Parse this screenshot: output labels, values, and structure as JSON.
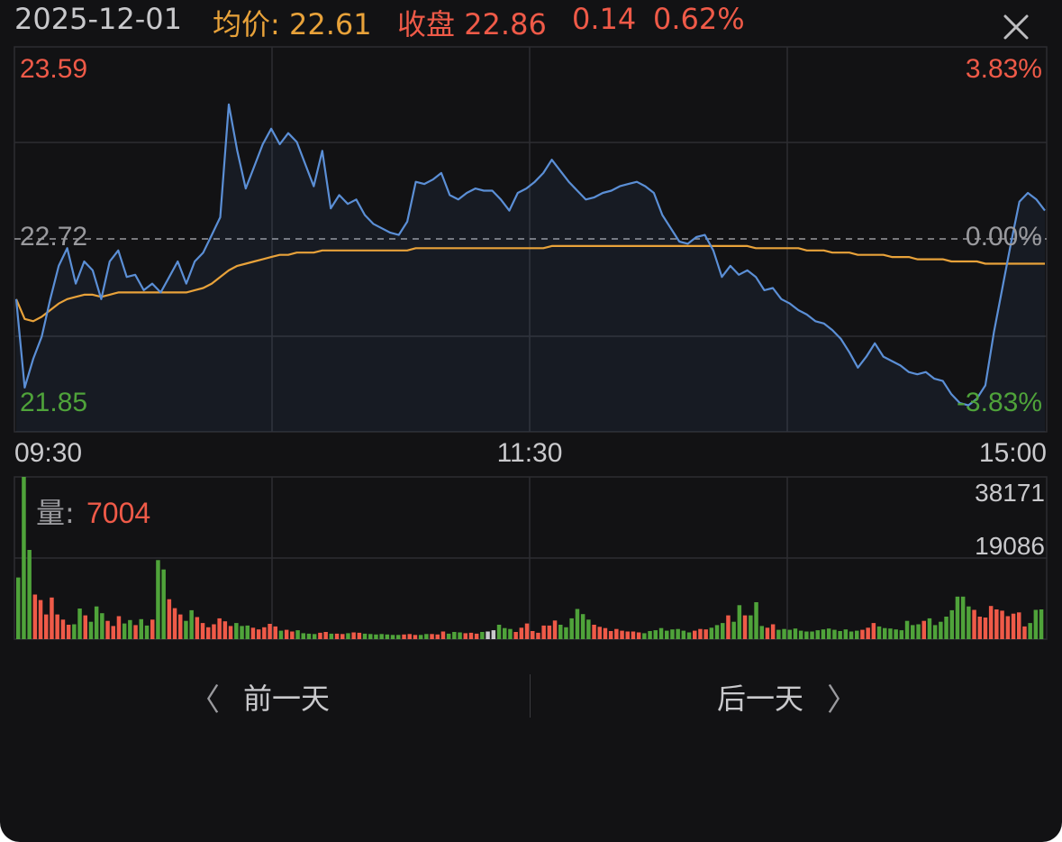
{
  "header": {
    "date": "2025-12-01",
    "avg_label": "均价:",
    "avg_value": "22.61",
    "close_label": "收盘",
    "close_value": "22.86",
    "change": "0.14",
    "change_pct": "0.62%",
    "close_icon": "close-icon"
  },
  "colors": {
    "background": "#121214",
    "price_line": "#5b8fd6",
    "avg_line": "#e8a23a",
    "up": "#ef5a48",
    "down": "#4fa33a",
    "neutral": "#c9c9cc",
    "grid": "#2d2d31"
  },
  "price_axis": {
    "high": "23.59",
    "base": "22.72",
    "low": "21.85",
    "high_pct": "3.83%",
    "base_pct": "0.00%",
    "low_pct": "-3.83%"
  },
  "time_axis": [
    "09:30",
    "11:30",
    "15:00"
  ],
  "volume": {
    "label": "量:",
    "value": "7004",
    "max_tick": "38171",
    "mid_tick": "19086"
  },
  "nav": {
    "prev_label": "前一天",
    "next_label": "后一天",
    "prev_icon": "chevron-left-icon",
    "next_icon": "chevron-right-icon"
  },
  "chart_data": [
    {
      "type": "line",
      "x_ticks": [
        "09:30",
        "11:30",
        "15:00"
      ],
      "ylim": [
        21.85,
        23.59
      ],
      "base_price": 22.72,
      "series": [
        {
          "name": "收盘",
          "values": [
            22.45,
            22.05,
            22.18,
            22.28,
            22.45,
            22.6,
            22.68,
            22.52,
            22.62,
            22.58,
            22.45,
            22.62,
            22.67,
            22.55,
            22.56,
            22.49,
            22.52,
            22.48,
            22.55,
            22.62,
            22.52,
            22.62,
            22.66,
            22.74,
            22.82,
            23.33,
            23.12,
            22.95,
            23.05,
            23.15,
            23.22,
            23.15,
            23.2,
            23.16,
            23.06,
            22.96,
            23.12,
            22.86,
            22.92,
            22.88,
            22.9,
            22.83,
            22.79,
            22.77,
            22.75,
            22.74,
            22.8,
            22.98,
            22.97,
            22.99,
            23.02,
            22.92,
            22.9,
            22.93,
            22.95,
            22.94,
            22.94,
            22.9,
            22.85,
            22.93,
            22.95,
            22.98,
            23.02,
            23.08,
            23.03,
            22.98,
            22.94,
            22.9,
            22.91,
            22.93,
            22.94,
            22.96,
            22.97,
            22.98,
            22.96,
            22.93,
            22.83,
            22.77,
            22.71,
            22.7,
            22.73,
            22.74,
            22.67,
            22.55,
            22.6,
            22.56,
            22.58,
            22.55,
            22.49,
            22.5,
            22.45,
            22.43,
            22.4,
            22.38,
            22.35,
            22.34,
            22.31,
            22.27,
            22.21,
            22.14,
            22.19,
            22.25,
            22.19,
            22.17,
            22.15,
            22.12,
            22.11,
            22.12,
            22.09,
            22.08,
            22.02,
            21.98,
            21.97,
            22.0,
            22.06,
            22.3,
            22.5,
            22.7,
            22.89,
            22.93,
            22.9,
            22.85
          ]
        },
        {
          "name": "均价",
          "values": [
            22.45,
            22.36,
            22.35,
            22.37,
            22.4,
            22.43,
            22.45,
            22.46,
            22.47,
            22.47,
            22.46,
            22.47,
            22.48,
            22.48,
            22.48,
            22.48,
            22.48,
            22.48,
            22.48,
            22.48,
            22.48,
            22.49,
            22.5,
            22.52,
            22.55,
            22.58,
            22.6,
            22.61,
            22.62,
            22.63,
            22.64,
            22.65,
            22.65,
            22.66,
            22.66,
            22.66,
            22.67,
            22.67,
            22.67,
            22.67,
            22.67,
            22.67,
            22.67,
            22.67,
            22.67,
            22.67,
            22.67,
            22.68,
            22.68,
            22.68,
            22.68,
            22.68,
            22.68,
            22.68,
            22.68,
            22.68,
            22.68,
            22.68,
            22.68,
            22.68,
            22.68,
            22.68,
            22.68,
            22.69,
            22.69,
            22.69,
            22.69,
            22.69,
            22.69,
            22.69,
            22.69,
            22.69,
            22.69,
            22.69,
            22.69,
            22.69,
            22.69,
            22.69,
            22.69,
            22.69,
            22.69,
            22.69,
            22.69,
            22.69,
            22.69,
            22.69,
            22.69,
            22.68,
            22.68,
            22.68,
            22.68,
            22.68,
            22.68,
            22.67,
            22.67,
            22.67,
            22.66,
            22.66,
            22.66,
            22.65,
            22.65,
            22.65,
            22.65,
            22.64,
            22.64,
            22.64,
            22.63,
            22.63,
            22.63,
            22.63,
            22.62,
            22.62,
            22.62,
            22.62,
            22.61,
            22.61,
            22.61,
            22.61,
            22.61,
            22.61,
            22.61,
            22.61
          ]
        }
      ]
    },
    {
      "type": "bar",
      "ylim": [
        0,
        38171
      ],
      "series": [
        {
          "name": "量",
          "values": [
            14500,
            38171,
            21000,
            10500,
            9200,
            5800,
            9800,
            5800,
            4600,
            3400,
            3500,
            7200,
            5600,
            4100,
            7700,
            6100,
            4300,
            3100,
            5400,
            3700,
            4500,
            3300,
            4700,
            3200,
            4600,
            18600,
            16400,
            9400,
            7300,
            5800,
            4300,
            6800,
            5200,
            3800,
            2800,
            3500,
            4900,
            4200,
            3100,
            3800,
            3100,
            3200,
            2700,
            2300,
            2800,
            3600,
            3000,
            2000,
            2200,
            1800,
            2100,
            1400,
            1300,
            1200,
            1500,
            1700,
            1300,
            1300,
            1200,
            1400,
            1600,
            1500,
            1300,
            1200,
            1100,
            1200,
            1100,
            1000,
            1000,
            1100,
            1200,
            1000,
            1000,
            1200,
            1200,
            1100,
            1800,
            1300,
            1700,
            1600,
            1400,
            1500,
            1300,
            1700,
            1800,
            2100,
            3400,
            2600,
            2400,
            1700,
            2700,
            3700,
            1900,
            1500,
            3200,
            3200,
            4400,
            3400,
            2800,
            4900,
            7100,
            5900,
            4600,
            3400,
            2900,
            2600,
            1900,
            2400,
            2000,
            1800,
            1800,
            1600,
            1400,
            1900,
            2100,
            2600,
            2000,
            2300,
            2400,
            2000,
            1600,
            2000,
            2400,
            2300,
            2700,
            3300,
            3800,
            5600,
            4100,
            8000,
            5600,
            5600,
            8700,
            3100,
            2700,
            3500,
            2200,
            2400,
            2200,
            2500,
            2000,
            1800,
            1800,
            2100,
            2300,
            2500,
            2200,
            1900,
            2300,
            1800,
            2000,
            2200,
            2700,
            3800,
            3000,
            2600,
            2500,
            2300,
            2100,
            4300,
            3300,
            3500,
            4300,
            4900,
            3300,
            4100,
            5300,
            6800,
            10000,
            10000,
            7700,
            6900,
            5300,
            5100,
            7800,
            7000,
            6700,
            5400,
            6000,
            6300,
            3000,
            3800,
            6900,
            7000
          ]
        }
      ]
    }
  ]
}
